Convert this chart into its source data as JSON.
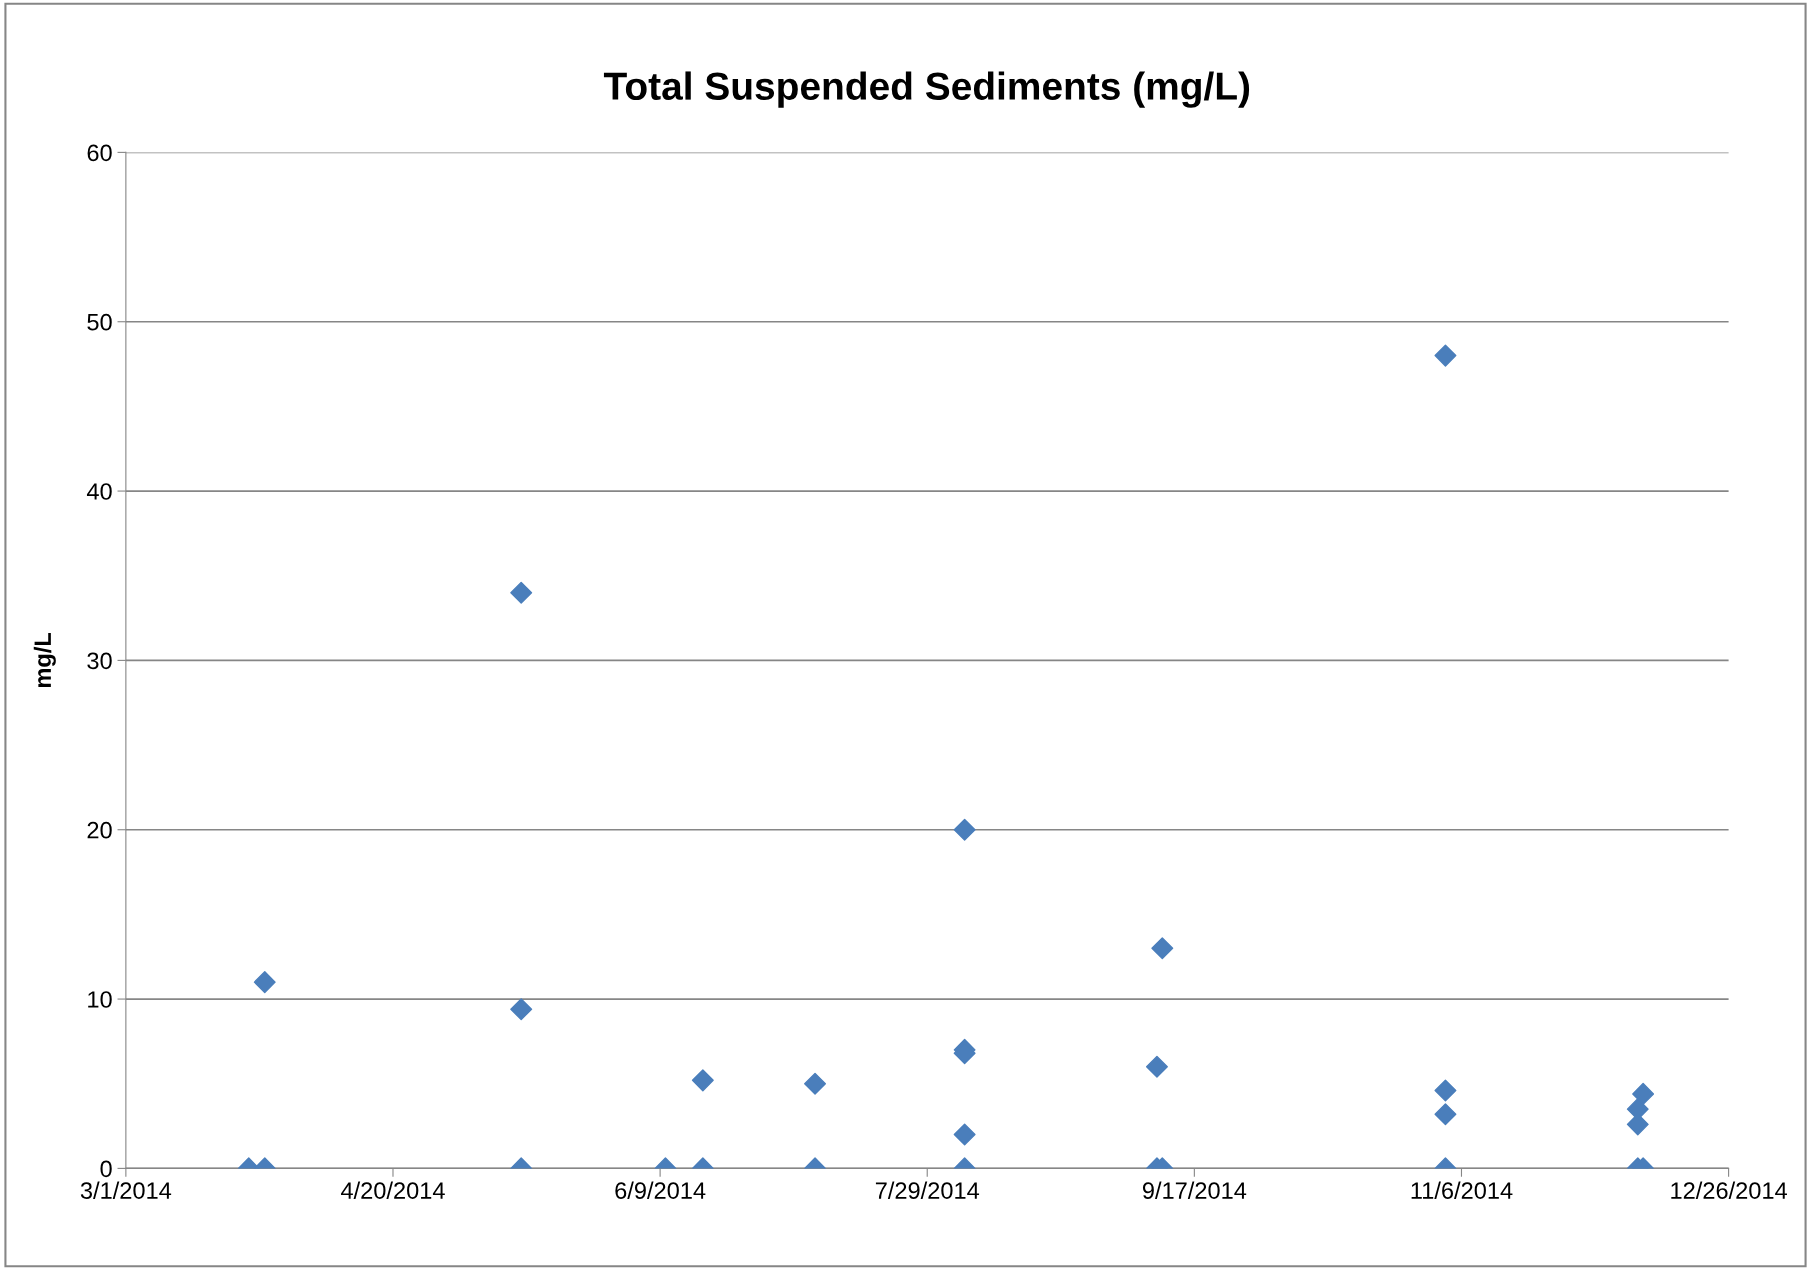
{
  "chart_data": {
    "type": "scatter",
    "title": "Total Suspended Sediments (mg/L)",
    "ylabel": "mg/L",
    "series": [
      {
        "color": "#4a7ebb",
        "x": [
          "2014-03-24",
          "2014-03-27",
          "2014-03-27",
          "2014-05-14",
          "2014-05-14",
          "2014-05-14",
          "2014-06-10",
          "2014-06-17",
          "2014-06-17",
          "2014-07-08",
          "2014-07-08",
          "2014-08-05",
          "2014-08-05",
          "2014-08-05",
          "2014-08-05",
          "2014-08-05",
          "2014-09-10",
          "2014-09-10",
          "2014-09-11",
          "2014-09-11",
          "2014-11-03",
          "2014-11-03",
          "2014-11-03",
          "2014-11-03",
          "2014-12-09",
          "2014-12-09",
          "2014-12-09",
          "2014-12-10",
          "2014-12-10"
        ],
        "values": [
          0,
          11,
          0,
          34,
          9.4,
          0,
          0,
          5.2,
          0,
          5,
          0,
          20,
          7,
          6.8,
          2,
          0,
          6,
          0,
          13,
          0,
          48,
          4.6,
          3.2,
          0,
          3.5,
          2.6,
          0,
          4.4,
          0
        ]
      }
    ],
    "xlim": [
      "2014-03-01",
      "2014-12-26"
    ],
    "xticks": [
      {
        "value": "2014-03-01",
        "label": "3/1/2014"
      },
      {
        "value": "2014-04-20",
        "label": "4/20/2014"
      },
      {
        "value": "2014-06-09",
        "label": "6/9/2014"
      },
      {
        "value": "2014-07-29",
        "label": "7/29/2014"
      },
      {
        "value": "2014-09-17",
        "label": "9/17/2014"
      },
      {
        "value": "2014-11-06",
        "label": "11/6/2014"
      },
      {
        "value": "2014-12-26",
        "label": "12/26/2014"
      }
    ],
    "ylim": [
      0,
      60
    ],
    "yticks": [
      0,
      10,
      20,
      30,
      40,
      50,
      60
    ],
    "grid": "y",
    "marker": "diamond",
    "legend": false
  }
}
